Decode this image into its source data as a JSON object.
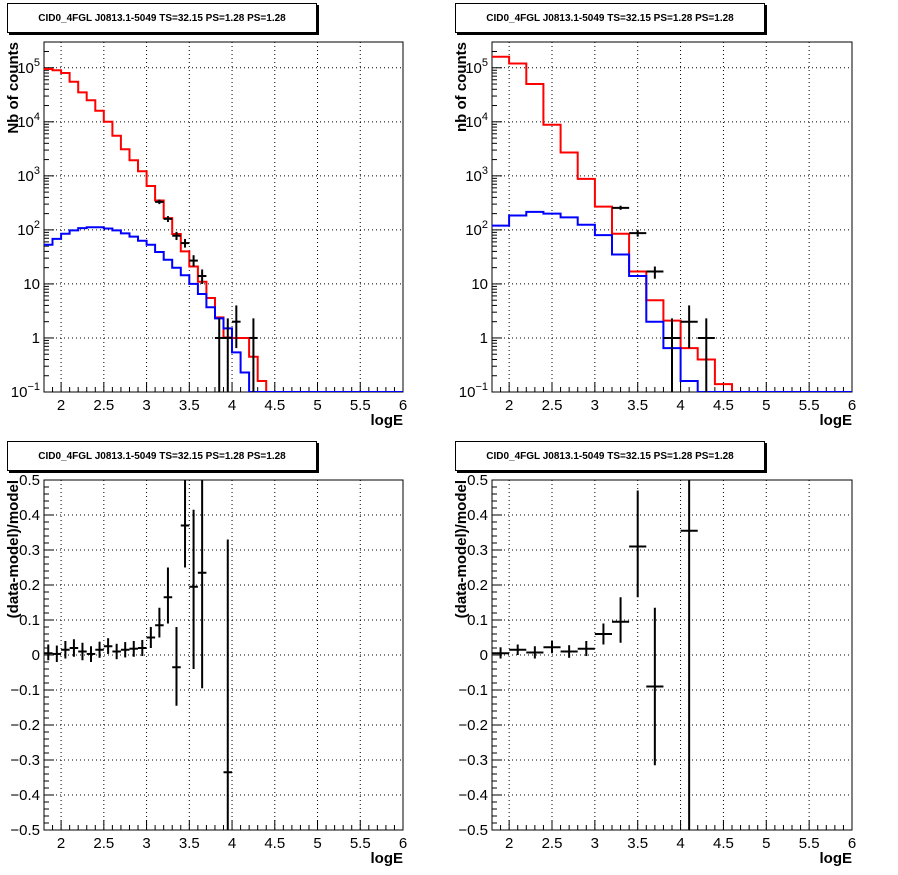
{
  "colors": {
    "data": "#000000",
    "total": "#ff0000",
    "component": "#0000ff",
    "grid": "#000000"
  },
  "chart_data": [
    {
      "type": "line",
      "title": "CID0_4FGL J0813.1-5049 TS=32.15 PS=1.28 PS=1.28",
      "xlabel": "logE",
      "ylabel": "Nb of counts",
      "xlim": [
        1.8,
        6
      ],
      "ylim": [
        0.1,
        300000
      ],
      "log_y": true,
      "grid": true,
      "x_ticks": [
        "2",
        "2.5",
        "3",
        "3.5",
        "4",
        "4.5",
        "5",
        "5.5",
        "6"
      ],
      "y_ticks": [
        {
          "value": 0.1,
          "base": "10",
          "exp": "−1"
        },
        {
          "value": 1,
          "label": "1"
        },
        {
          "value": 10,
          "label": "10"
        },
        {
          "value": 100,
          "base": "10",
          "exp": "2"
        },
        {
          "value": 1000,
          "base": "10",
          "exp": "3"
        },
        {
          "value": 10000,
          "base": "10",
          "exp": "4"
        },
        {
          "value": 100000,
          "base": "10",
          "exp": "5"
        }
      ],
      "bin_edges": [
        1.8,
        1.9,
        2.0,
        2.1,
        2.2,
        2.3,
        2.4,
        2.5,
        2.6,
        2.7,
        2.8,
        2.9,
        3.0,
        3.1,
        3.2,
        3.3,
        3.4,
        3.5,
        3.6,
        3.7,
        3.8,
        3.9,
        4.0,
        4.1,
        4.2,
        4.3,
        4.4,
        4.5,
        4.6,
        4.7,
        4.8,
        4.9,
        5.0,
        5.1,
        5.2,
        5.3,
        5.4,
        5.5,
        5.6,
        5.7,
        5.8,
        5.9,
        6.0
      ],
      "series": [
        {
          "name": "",
          "style": "step-red",
          "values": [
            95000,
            90000,
            80000,
            55000,
            35000,
            25000,
            16000,
            10000,
            5500,
            3100,
            1950,
            1220,
            650,
            350,
            165,
            84,
            40,
            21,
            11,
            5.5,
            2.4,
            1.02,
            1.0,
            1.0,
            0.45,
            0.16,
            0.1,
            0.1,
            0.1,
            0.1,
            0.1,
            0.1,
            0.1,
            0.1,
            0.1,
            0.1,
            0.1,
            0.1,
            0.1,
            0.1,
            0.1,
            0.1
          ]
        },
        {
          "name": "",
          "style": "step-blue",
          "values": [
            53,
            68,
            85,
            98,
            108,
            112,
            112,
            106,
            98,
            86,
            75,
            63,
            53,
            39,
            28,
            20,
            14.5,
            10,
            6.5,
            3.7,
            2.3,
            1.5,
            0.54,
            0.23,
            0.1,
            0.1,
            0.1,
            0.1,
            0.1,
            0.1,
            0.1,
            0.1,
            0.1,
            0.1,
            0.1,
            0.1,
            0.1,
            0.1,
            0.1,
            0.1,
            0.1,
            0.1
          ]
        }
      ],
      "points": [
        {
          "x": 3.15,
          "y": 330,
          "ylo": 300,
          "yhi": 365
        },
        {
          "x": 3.25,
          "y": 160,
          "ylo": 140,
          "yhi": 180
        },
        {
          "x": 3.35,
          "y": 78,
          "ylo": 65,
          "yhi": 92
        },
        {
          "x": 3.45,
          "y": 57,
          "ylo": 47,
          "yhi": 68
        },
        {
          "x": 3.55,
          "y": 27,
          "ylo": 21,
          "yhi": 34
        },
        {
          "x": 3.65,
          "y": 14,
          "ylo": 10,
          "yhi": 18.5
        },
        {
          "x": 3.85,
          "y": 1,
          "ylo": 0.1,
          "yhi": 2.3
        },
        {
          "x": 3.95,
          "y": 1,
          "ylo": 0.1,
          "yhi": 2.3
        },
        {
          "x": 4.05,
          "y": 2,
          "ylo": 0.65,
          "yhi": 4
        },
        {
          "x": 4.25,
          "y": 1,
          "ylo": 0.1,
          "yhi": 2.3
        }
      ]
    },
    {
      "type": "line",
      "title": "CID0_4FGL J0813.1-5049 TS=32.15 PS=1.28 PS=1.28",
      "xlabel": "logE",
      "ylabel": "nb of counts",
      "xlim": [
        1.8,
        6
      ],
      "ylim": [
        0.1,
        300000
      ],
      "log_y": true,
      "grid": true,
      "x_ticks": [
        "2",
        "2.5",
        "3",
        "3.5",
        "4",
        "4.5",
        "5",
        "5.5",
        "6"
      ],
      "y_ticks": [
        {
          "value": 0.1,
          "base": "10",
          "exp": "−1"
        },
        {
          "value": 1,
          "label": "1"
        },
        {
          "value": 10,
          "label": "10"
        },
        {
          "value": 100,
          "base": "10",
          "exp": "2"
        },
        {
          "value": 1000,
          "base": "10",
          "exp": "3"
        },
        {
          "value": 10000,
          "base": "10",
          "exp": "4"
        },
        {
          "value": 100000,
          "base": "10",
          "exp": "5"
        }
      ],
      "bin_edges": [
        1.8,
        2.0,
        2.2,
        2.4,
        2.6,
        2.8,
        3.0,
        3.2,
        3.4,
        3.6,
        3.8,
        4.0,
        4.2,
        4.4,
        4.6,
        4.8,
        5.0,
        5.2,
        5.4,
        5.6,
        5.8,
        6.0
      ],
      "series": [
        {
          "name": "",
          "style": "step-red",
          "values": [
            160000,
            120000,
            50000,
            8800,
            2700,
            880,
            270,
            85,
            17,
            5,
            2.1,
            0.65,
            0.4,
            0.14,
            0.1,
            0.1,
            0.1,
            0.1,
            0.1,
            0.1,
            0.1
          ]
        },
        {
          "name": "",
          "style": "step-blue",
          "values": [
            120,
            185,
            215,
            200,
            170,
            125,
            80,
            35,
            14,
            2,
            0.65,
            0.16,
            0.1,
            0.1,
            0.1,
            0.1,
            0.1,
            0.1,
            0.1,
            0.1,
            0.1
          ]
        }
      ],
      "points": [
        {
          "x": 3.3,
          "y": 255,
          "ylo": 235,
          "yhi": 280
        },
        {
          "x": 3.5,
          "y": 87,
          "ylo": 75,
          "yhi": 100
        },
        {
          "x": 3.7,
          "y": 17,
          "ylo": 12.5,
          "yhi": 21
        },
        {
          "x": 3.9,
          "y": 1,
          "ylo": 0.1,
          "yhi": 2.3
        },
        {
          "x": 4.1,
          "y": 2,
          "ylo": 0.65,
          "yhi": 4
        },
        {
          "x": 4.3,
          "y": 1,
          "ylo": 0.1,
          "yhi": 2.3
        }
      ]
    },
    {
      "type": "scatter",
      "title": "CID0_4FGL J0813.1-5049 TS=32.15 PS=1.28 PS=1.28",
      "xlabel": "logE",
      "ylabel": "(data-model)/model",
      "xlim": [
        1.8,
        6
      ],
      "ylim": [
        -0.5,
        0.5
      ],
      "grid": true,
      "x_ticks": [
        "2",
        "2.5",
        "3",
        "3.5",
        "4",
        "4.5",
        "5",
        "5.5",
        "6"
      ],
      "y_ticks": [
        "−0.5",
        "−0.4",
        "−0.3",
        "−0.2",
        "−0.1",
        "0",
        "0.1",
        "0.2",
        "0.3",
        "0.4",
        "0.5"
      ],
      "xerr": 0.05,
      "points": [
        {
          "x": 1.85,
          "y": 0.005,
          "ylo": -0.015,
          "yhi": 0.03
        },
        {
          "x": 1.95,
          "y": 0.003,
          "ylo": -0.02,
          "yhi": 0.027
        },
        {
          "x": 2.05,
          "y": 0.015,
          "ylo": -0.01,
          "yhi": 0.04
        },
        {
          "x": 2.15,
          "y": 0.02,
          "ylo": -0.005,
          "yhi": 0.045
        },
        {
          "x": 2.25,
          "y": 0.01,
          "ylo": -0.015,
          "yhi": 0.035
        },
        {
          "x": 2.35,
          "y": 0.003,
          "ylo": -0.02,
          "yhi": 0.025
        },
        {
          "x": 2.45,
          "y": 0.015,
          "ylo": -0.008,
          "yhi": 0.038
        },
        {
          "x": 2.55,
          "y": 0.025,
          "ylo": 0.003,
          "yhi": 0.048
        },
        {
          "x": 2.65,
          "y": 0.01,
          "ylo": -0.012,
          "yhi": 0.032
        },
        {
          "x": 2.75,
          "y": 0.015,
          "ylo": -0.007,
          "yhi": 0.037
        },
        {
          "x": 2.85,
          "y": 0.018,
          "ylo": -0.005,
          "yhi": 0.04
        },
        {
          "x": 2.95,
          "y": 0.02,
          "ylo": -0.003,
          "yhi": 0.043
        },
        {
          "x": 3.05,
          "y": 0.05,
          "ylo": 0.02,
          "yhi": 0.08
        },
        {
          "x": 3.15,
          "y": 0.085,
          "ylo": 0.05,
          "yhi": 0.135
        },
        {
          "x": 3.25,
          "y": 0.165,
          "ylo": 0.09,
          "yhi": 0.25
        },
        {
          "x": 3.35,
          "y": -0.035,
          "ylo": -0.145,
          "yhi": 0.08
        },
        {
          "x": 3.45,
          "y": 0.37,
          "ylo": 0.25,
          "yhi": 0.5
        },
        {
          "x": 3.55,
          "y": 0.195,
          "ylo": -0.04,
          "yhi": 0.415
        },
        {
          "x": 3.65,
          "y": 0.235,
          "ylo": -0.095,
          "yhi": 0.5
        },
        {
          "x": 3.95,
          "y": -0.335,
          "ylo": -0.5,
          "yhi": 0.33
        }
      ]
    },
    {
      "type": "scatter",
      "title": "CID0_4FGL J0813.1-5049 TS=32.15 PS=1.28 PS=1.28",
      "xlabel": "logE",
      "ylabel": "(data-model)/model",
      "xlim": [
        1.8,
        6
      ],
      "ylim": [
        -0.5,
        0.5
      ],
      "grid": true,
      "x_ticks": [
        "2",
        "2.5",
        "3",
        "3.5",
        "4",
        "4.5",
        "5",
        "5.5",
        "6"
      ],
      "y_ticks": [
        "−0.5",
        "−0.4",
        "−0.3",
        "−0.2",
        "−0.1",
        "0",
        "0.1",
        "0.2",
        "0.3",
        "0.4",
        "0.5"
      ],
      "xerr": 0.1,
      "points": [
        {
          "x": 1.9,
          "y": 0.005,
          "ylo": -0.01,
          "yhi": 0.022
        },
        {
          "x": 2.1,
          "y": 0.015,
          "ylo": 0.0,
          "yhi": 0.03
        },
        {
          "x": 2.3,
          "y": 0.007,
          "ylo": -0.01,
          "yhi": 0.025
        },
        {
          "x": 2.5,
          "y": 0.022,
          "ylo": 0.005,
          "yhi": 0.04
        },
        {
          "x": 2.7,
          "y": 0.01,
          "ylo": -0.008,
          "yhi": 0.028
        },
        {
          "x": 2.9,
          "y": 0.018,
          "ylo": -0.003,
          "yhi": 0.04
        },
        {
          "x": 3.1,
          "y": 0.06,
          "ylo": 0.03,
          "yhi": 0.09
        },
        {
          "x": 3.3,
          "y": 0.095,
          "ylo": 0.035,
          "yhi": 0.165
        },
        {
          "x": 3.5,
          "y": 0.31,
          "ylo": 0.165,
          "yhi": 0.47
        },
        {
          "x": 3.7,
          "y": -0.09,
          "ylo": -0.315,
          "yhi": 0.135
        },
        {
          "x": 4.1,
          "y": 0.355,
          "ylo": -0.5,
          "yhi": 0.5
        }
      ]
    }
  ]
}
